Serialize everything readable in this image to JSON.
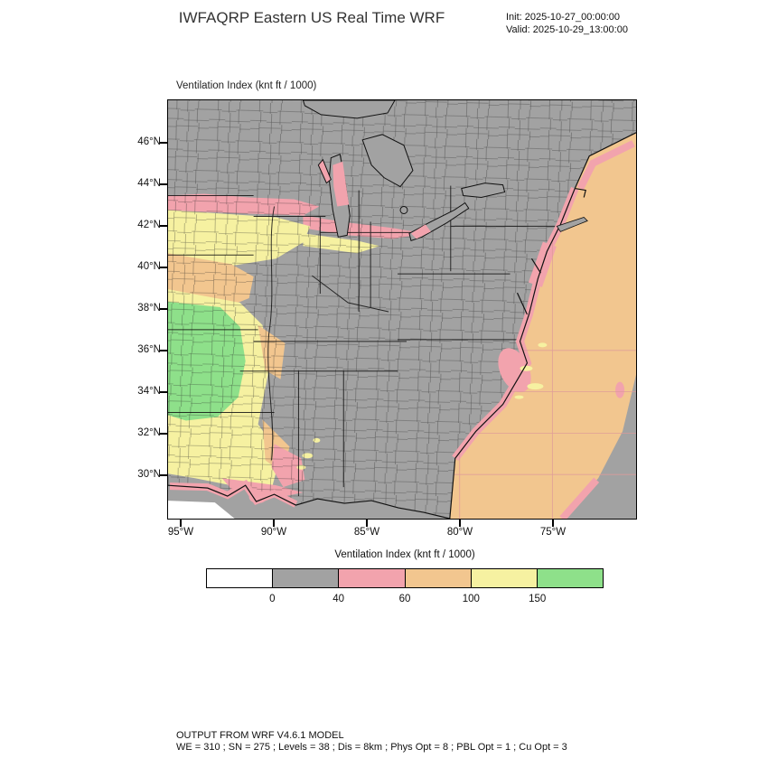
{
  "header": {
    "title": "IWFAQRP Eastern US Real Time WRF",
    "init_line": "Init: 2025-10-27_00:00:00",
    "valid_line": "Valid: 2025-10-29_13:00:00"
  },
  "map": {
    "plot_label": "Ventilation Index  (knt ft / 1000)",
    "lat_ticks": [
      "46°N",
      "44°N",
      "42°N",
      "40°N",
      "38°N",
      "36°N",
      "34°N",
      "32°N",
      "30°N"
    ],
    "lon_ticks": [
      "95°W",
      "90°W",
      "85°W",
      "80°W",
      "75°W"
    ],
    "colors": {
      "land_gray": "#a2a2a2",
      "pink": "#f2a3ad",
      "tan": "#f2c68f",
      "yellow": "#f6f1a1",
      "green": "#8ee08a",
      "white": "#ffffff"
    }
  },
  "legend": {
    "title": "Ventilation Index  (knt ft / 1000)",
    "tick_labels": [
      "0",
      "40",
      "60",
      "100",
      "150"
    ],
    "colors": [
      "#ffffff",
      "#a2a2a2",
      "#f2a3ad",
      "#f2c68f",
      "#f6f1a1",
      "#8ee08a"
    ]
  },
  "chart_data": {
    "type": "heatmap",
    "title": "Ventilation Index (knt ft / 1000)",
    "colorbar_levels": [
      0,
      40,
      60,
      100,
      150
    ],
    "colorbar_colors": [
      "#ffffff",
      "#a2a2a2",
      "#f2a3ad",
      "#f2c68f",
      "#f6f1a1",
      "#8ee08a"
    ],
    "lat_tick_labels": [
      "46°N",
      "44°N",
      "42°N",
      "40°N",
      "38°N",
      "36°N",
      "34°N",
      "32°N",
      "30°N"
    ],
    "lon_tick_labels": [
      "95°W",
      "90°W",
      "85°W",
      "80°W",
      "75°W"
    ]
  },
  "footer": {
    "line1": "OUTPUT FROM WRF V4.6.1 MODEL",
    "line2": "WE = 310 ; SN = 275 ; Levels = 38 ; Dis = 8km ; Phys Opt = 8 ; PBL Opt = 1 ; Cu Opt = 3"
  }
}
